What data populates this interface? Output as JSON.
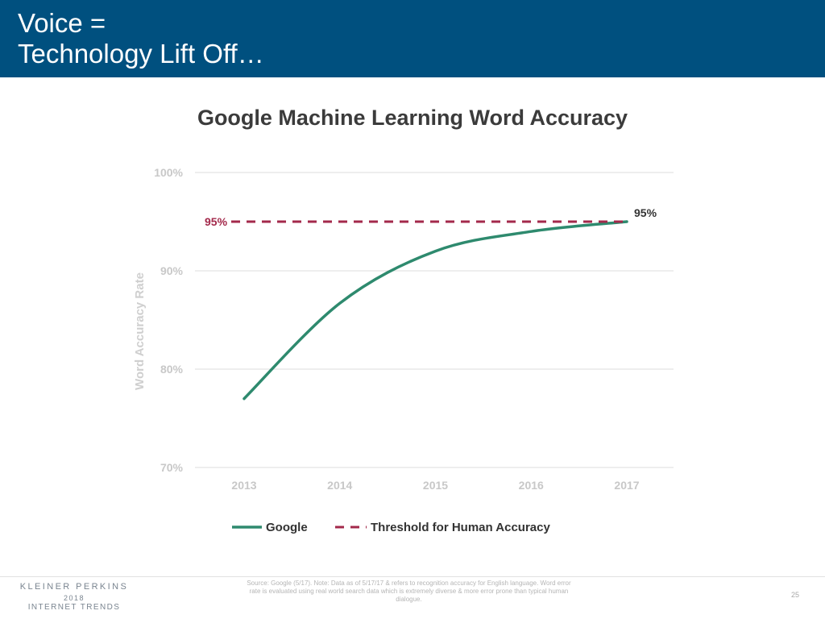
{
  "slide": {
    "title_lines": [
      "Voice =",
      "Technology Lift Off…"
    ],
    "brand": {
      "line1": "KLEINER PERKINS",
      "line2": "2018",
      "line3": "INTERNET TRENDS"
    },
    "source": "Source: Google (5/17). Note: Data as of 5/17/17 & refers to recognition accuracy for English language. Word error rate is evaluated using real world search data which is extremely diverse & more error prone than typical human dialogue.",
    "page_number": "25"
  },
  "colors": {
    "header_bg": "#00507f",
    "google_line": "#2e8a6e",
    "threshold_line": "#a3294b",
    "gridline": "#e3e3e3"
  },
  "chart_data": {
    "type": "line",
    "title": "Google Machine Learning Word Accuracy",
    "xlabel": "",
    "ylabel": "Word Accuracy Rate",
    "categories": [
      "2013",
      "2014",
      "2015",
      "2016",
      "2017"
    ],
    "y_ticks": [
      "70%",
      "80%",
      "90%",
      "100%"
    ],
    "ylim": [
      70,
      100
    ],
    "grid": true,
    "legend_position": "bottom",
    "series": [
      {
        "name": "Google",
        "style": "solid",
        "x": [
          2013,
          2014,
          2015,
          2016,
          2017
        ],
        "values": [
          77,
          86.7,
          92,
          94,
          95
        ]
      },
      {
        "name": "Threshold for Human Accuracy",
        "style": "dashed",
        "x": [
          2013,
          2017
        ],
        "values": [
          95,
          95
        ]
      }
    ],
    "annotations": [
      {
        "text": "95%",
        "series": "Threshold for Human Accuracy",
        "anchor": "start"
      },
      {
        "text": "95%",
        "series": "Google",
        "anchor": "end"
      }
    ]
  }
}
